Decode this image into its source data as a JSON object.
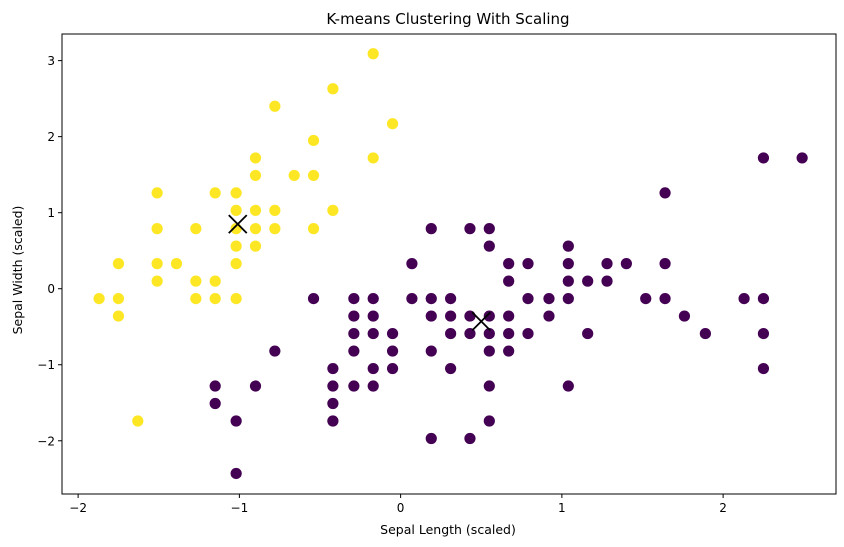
{
  "chart_data": {
    "type": "scatter",
    "title": "K-means Clustering With Scaling",
    "xlabel": "Sepal Length (scaled)",
    "ylabel": "Sepal Width (scaled)",
    "xlim": [
      -2.1,
      2.7
    ],
    "ylim": [
      -2.7,
      3.35
    ],
    "xticks": [
      -2,
      -1,
      0,
      1,
      2
    ],
    "yticks": [
      -2,
      -1,
      0,
      1,
      2,
      3
    ],
    "grid": false,
    "colors": {
      "cluster_1": "#fde725",
      "cluster_0": "#440154",
      "centroid": "#000000"
    },
    "series": [
      {
        "cluster": 1,
        "color": "#fde725",
        "points": [
          [
            -1.87,
            -0.13
          ],
          [
            -1.75,
            0.33
          ],
          [
            -1.75,
            -0.13
          ],
          [
            -1.75,
            -0.36
          ],
          [
            -1.63,
            -1.74
          ],
          [
            -1.51,
            1.26
          ],
          [
            -1.51,
            0.79
          ],
          [
            -1.51,
            0.33
          ],
          [
            -1.51,
            0.1
          ],
          [
            -1.39,
            0.33
          ],
          [
            -1.27,
            0.79
          ],
          [
            -1.27,
            0.1
          ],
          [
            -1.27,
            -0.13
          ],
          [
            -1.15,
            1.26
          ],
          [
            -1.15,
            0.1
          ],
          [
            -1.15,
            -0.13
          ],
          [
            -1.02,
            1.26
          ],
          [
            -1.02,
            1.03
          ],
          [
            -1.02,
            0.79
          ],
          [
            -1.02,
            0.56
          ],
          [
            -1.02,
            0.33
          ],
          [
            -1.02,
            -0.13
          ],
          [
            -0.9,
            1.72
          ],
          [
            -0.9,
            1.49
          ],
          [
            -0.9,
            1.03
          ],
          [
            -0.9,
            0.79
          ],
          [
            -0.9,
            0.56
          ],
          [
            -0.78,
            2.4
          ],
          [
            -0.78,
            1.03
          ],
          [
            -0.78,
            0.79
          ],
          [
            -0.66,
            1.49
          ],
          [
            -0.54,
            1.95
          ],
          [
            -0.54,
            1.49
          ],
          [
            -0.54,
            0.79
          ],
          [
            -0.42,
            2.63
          ],
          [
            -0.42,
            1.03
          ],
          [
            -0.17,
            3.09
          ],
          [
            -0.17,
            1.72
          ],
          [
            -0.05,
            2.17
          ]
        ]
      },
      {
        "cluster": 0,
        "color": "#440154",
        "points": [
          [
            -1.15,
            -1.28
          ],
          [
            -1.15,
            -1.51
          ],
          [
            -1.02,
            -1.74
          ],
          [
            -1.02,
            -2.43
          ],
          [
            -0.9,
            -1.28
          ],
          [
            -0.78,
            -0.82
          ],
          [
            -0.54,
            -0.13
          ],
          [
            -0.42,
            -1.05
          ],
          [
            -0.42,
            -1.28
          ],
          [
            -0.42,
            -1.51
          ],
          [
            -0.42,
            -1.74
          ],
          [
            -0.29,
            -0.13
          ],
          [
            -0.29,
            -0.36
          ],
          [
            -0.29,
            -0.59
          ],
          [
            -0.29,
            -0.82
          ],
          [
            -0.29,
            -1.28
          ],
          [
            -0.17,
            -0.13
          ],
          [
            -0.17,
            -0.36
          ],
          [
            -0.17,
            -0.59
          ],
          [
            -0.17,
            -1.05
          ],
          [
            -0.17,
            -1.28
          ],
          [
            -0.05,
            -0.59
          ],
          [
            -0.05,
            -0.82
          ],
          [
            -0.05,
            -1.05
          ],
          [
            0.07,
            0.33
          ],
          [
            0.07,
            -0.13
          ],
          [
            0.19,
            0.79
          ],
          [
            0.19,
            -0.13
          ],
          [
            0.19,
            -0.36
          ],
          [
            0.19,
            -0.82
          ],
          [
            0.19,
            -1.97
          ],
          [
            0.31,
            -0.13
          ],
          [
            0.31,
            -0.36
          ],
          [
            0.31,
            -0.59
          ],
          [
            0.31,
            -1.05
          ],
          [
            0.43,
            0.79
          ],
          [
            0.43,
            -0.36
          ],
          [
            0.43,
            -0.59
          ],
          [
            0.43,
            -1.97
          ],
          [
            0.55,
            0.79
          ],
          [
            0.55,
            0.56
          ],
          [
            0.55,
            -0.36
          ],
          [
            0.55,
            -0.59
          ],
          [
            0.55,
            -0.82
          ],
          [
            0.55,
            -1.28
          ],
          [
            0.55,
            -1.74
          ],
          [
            0.67,
            0.33
          ],
          [
            0.67,
            0.1
          ],
          [
            0.67,
            -0.36
          ],
          [
            0.67,
            -0.59
          ],
          [
            0.67,
            -0.82
          ],
          [
            0.79,
            0.33
          ],
          [
            0.79,
            -0.13
          ],
          [
            0.79,
            -0.59
          ],
          [
            0.92,
            -0.13
          ],
          [
            0.92,
            -0.36
          ],
          [
            1.04,
            0.56
          ],
          [
            1.04,
            0.33
          ],
          [
            1.04,
            0.1
          ],
          [
            1.04,
            -0.13
          ],
          [
            1.04,
            -1.28
          ],
          [
            1.16,
            0.1
          ],
          [
            1.16,
            -0.59
          ],
          [
            1.28,
            0.33
          ],
          [
            1.28,
            0.1
          ],
          [
            1.4,
            0.33
          ],
          [
            1.52,
            -0.13
          ],
          [
            1.64,
            1.26
          ],
          [
            1.64,
            0.33
          ],
          [
            1.64,
            -0.13
          ],
          [
            1.76,
            -0.36
          ],
          [
            1.89,
            -0.59
          ],
          [
            2.13,
            -0.13
          ],
          [
            2.25,
            1.72
          ],
          [
            2.25,
            -0.13
          ],
          [
            2.25,
            -0.59
          ],
          [
            2.25,
            -1.05
          ],
          [
            2.49,
            1.72
          ]
        ]
      }
    ],
    "centroids": [
      [
        -1.01,
        0.85
      ],
      [
        0.5,
        -0.43
      ]
    ]
  }
}
